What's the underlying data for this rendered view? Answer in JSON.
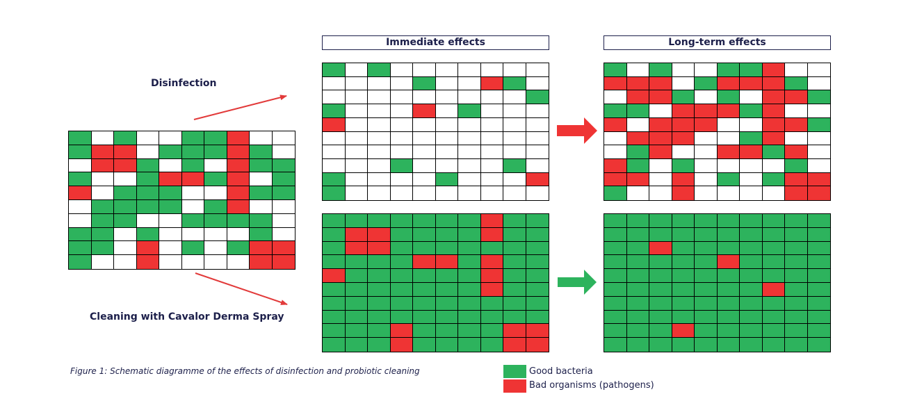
{
  "colors": {
    "good": "#2db35d",
    "bad": "#ef3434",
    "empty": "#ffffff",
    "arrow_line": "#e23a3a"
  },
  "labels": {
    "immediate": "Immediate effects",
    "longterm": "Long-term effects",
    "disinfection": "Disinfection",
    "cleaning": "Cleaning with Cavalor Derma Spray",
    "caption": "Figure 1: Schematic diagramme of the effects of disinfection and probiotic cleaning"
  },
  "legend": [
    {
      "key": "good",
      "label": "Good bacteria"
    },
    {
      "key": "bad",
      "label": "Bad organisms (pathogens)"
    }
  ],
  "grids": {
    "initial": [
      "GWGWWGGRWW",
      "GRRWGGGRGW",
      "WRRGWGWRGG",
      "GWWGRRGRWG",
      "RWGGGWWRGG",
      "WGGGGWGRWW",
      "WGGWWGGGGW",
      "GGWGWWWWGW",
      "GGWRWGWGRR",
      "GWWRWWWWRR"
    ],
    "disinfection_immediate": [
      "GWGWWWWWWW",
      "WWWWGWWRGW",
      "WWWWWWWWWG",
      "GWWWRWGWWW",
      "RWWWWWWWWW",
      "WWWWWWWWWW",
      "WWWWWWWWWW",
      "WWWGWWWWGW",
      "GWWWWGWWWR",
      "GWWWWWWWWW"
    ],
    "disinfection_longterm": [
      "GWGWWGGRWW",
      "RRRWGRRRGW",
      "WRRGWGWRRG",
      "GGWRRRGRWW",
      "RWRRRWWRRG",
      "WRRRWWGRWW",
      "WGRWWRRGRW",
      "RGWGWWWWGW",
      "RRWRWGWGRR",
      "GWWRWWWWRR"
    ],
    "cleaning_immediate": [
      "GGGGGGGRGG",
      "GRRGGGGRGG",
      "GRRGGGGGGG",
      "GGGGRRGRGG",
      "RGGGGGGRGG",
      "GGGGGGGRGG",
      "GGGGGGGGGG",
      "GGGGGGGGGG",
      "GGGRGGGGRR",
      "GGGRGGGGRR"
    ],
    "cleaning_longterm": [
      "GGGGGGGGGG",
      "GGGGGGGGGG",
      "GGRGGGGGGG",
      "GGGGGRGGGG",
      "GGGGGGGGGG",
      "GGGGGGGRGG",
      "GGGGGGGGGG",
      "GGGGGGGGGG",
      "GGGRGGGGGG",
      "GGGGGGGGGG"
    ]
  }
}
